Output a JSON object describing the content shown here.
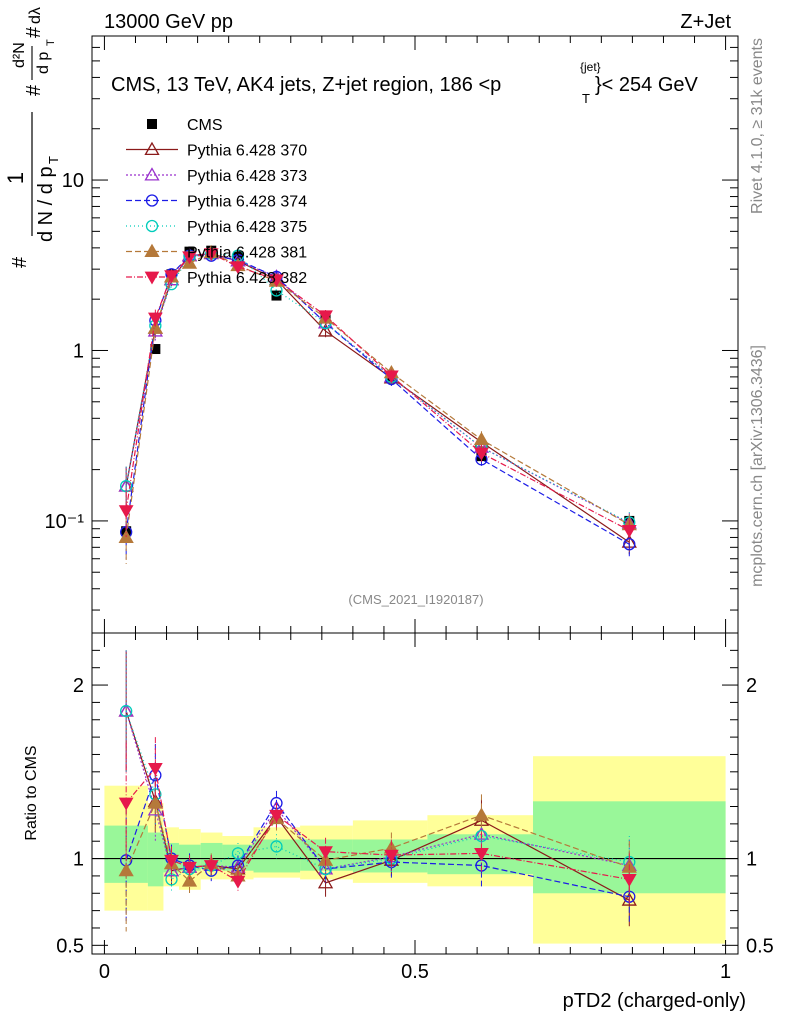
{
  "header": {
    "left": "13000 GeV pp",
    "right": "Z+Jet"
  },
  "side_texts": {
    "rivet": "Rivet 4.1.0, ≥ 31k events",
    "mcplots": "mcplots.cern.ch [arXiv:1306.3436]"
  },
  "colors": {
    "band_green": "#99f799",
    "band_yellow": "#ffff99",
    "axis": "#000000",
    "cms": "#000000"
  },
  "chart_data": [
    {
      "type": "line",
      "panel": "main",
      "title": "CMS, 13 TeV, AK4 jets, Z+jet region, 186 <p",
      "title_sup": "{jet}",
      "title_sub": "T",
      "title_tail": "}< 254 GeV",
      "watermark": "(CMS_2021_I1920187)",
      "xlabel": "pTD2 (charged-only)",
      "ylabel": {
        "prefix": "#",
        "one": "1",
        "dN": "d N / d p",
        "t": "T",
        "inner_hash": "#",
        "inner_hash2": "#",
        "d2N": "d²N",
        "dpt": "d p",
        "dl": "dλ"
      },
      "yscale": "log",
      "xlim": [
        -0.02,
        1.02
      ],
      "ylim": [
        0.022,
        70
      ],
      "y_ticks": [
        {
          "value": 0.1,
          "label": "10⁻¹"
        },
        {
          "value": 1,
          "label": "1"
        },
        {
          "value": 10,
          "label": "10"
        }
      ],
      "x": [
        0.035,
        0.082,
        0.108,
        0.137,
        0.172,
        0.215,
        0.277,
        0.356,
        0.462,
        0.607,
        0.845
      ],
      "series": [
        {
          "name": "CMS",
          "color": "#000000",
          "marker": "square",
          "dash": "none",
          "values": [
            0.087,
            1.02,
            2.8,
            3.8,
            3.85,
            3.55,
            2.1,
            1.55,
            0.7,
            0.24,
            0.1
          ]
        },
        {
          "name": "Pythia 6.428 370",
          "color": "#8b1a1a",
          "marker": "triangle-open",
          "dash": "none",
          "values": [
            0.16,
            1.35,
            2.6,
            3.6,
            3.7,
            3.35,
            2.6,
            1.3,
            0.69,
            0.29,
            0.075
          ]
        },
        {
          "name": "Pythia 6.428 373",
          "color": "#9a32cd",
          "marker": "triangle-open",
          "dash": "2,2",
          "values": [
            0.16,
            1.3,
            2.6,
            3.6,
            3.7,
            3.35,
            2.7,
            1.45,
            0.7,
            0.27,
            0.097
          ]
        },
        {
          "name": "Pythia 6.428 374",
          "color": "#1c1ce6",
          "marker": "circle-open",
          "dash": "6,3",
          "values": [
            0.086,
            1.5,
            2.8,
            3.6,
            3.6,
            3.4,
            2.7,
            1.45,
            0.68,
            0.23,
            0.073
          ]
        },
        {
          "name": "Pythia 6.428 375",
          "color": "#00ccbb",
          "marker": "circle-open",
          "dash": "1,3",
          "values": [
            0.16,
            1.4,
            2.45,
            3.55,
            3.7,
            3.6,
            2.25,
            1.45,
            0.7,
            0.27,
            0.098
          ]
        },
        {
          "name": "Pythia 6.428 381",
          "color": "#b5793a",
          "marker": "triangle-fill",
          "dash": "6,3",
          "values": [
            0.08,
            1.35,
            2.7,
            3.25,
            3.75,
            3.15,
            2.55,
            1.55,
            0.74,
            0.3,
            0.095
          ]
        },
        {
          "name": "Pythia 6.428 382",
          "color": "#e6194b",
          "marker": "triangledown-fill",
          "dash": "6,2,1,2",
          "values": [
            0.115,
            1.55,
            2.75,
            3.55,
            3.7,
            3.1,
            2.6,
            1.6,
            0.71,
            0.25,
            0.088
          ]
        }
      ]
    },
    {
      "type": "line",
      "panel": "ratio",
      "ylabel": "Ratio to CMS",
      "ylim": [
        0.45,
        2.3
      ],
      "y_ticks": [
        {
          "value": 0.5,
          "label": "0.5"
        },
        {
          "value": 1,
          "label": "1"
        },
        {
          "value": 2,
          "label": "2"
        }
      ],
      "x_ticks": [
        {
          "value": 0,
          "label": "0"
        },
        {
          "value": 0.5,
          "label": "0.5"
        },
        {
          "value": 1,
          "label": "1"
        }
      ],
      "bands": {
        "edges": [
          0.0,
          0.07,
          0.095,
          0.12,
          0.155,
          0.19,
          0.24,
          0.315,
          0.4,
          0.52,
          0.69,
          1.0
        ],
        "green": [
          [
            0.86,
            1.19
          ],
          [
            0.84,
            1.15
          ],
          [
            0.92,
            1.09
          ],
          [
            0.93,
            1.08
          ],
          [
            0.94,
            1.09
          ],
          [
            0.93,
            1.08
          ],
          [
            0.92,
            1.11
          ],
          [
            0.93,
            1.11
          ],
          [
            0.92,
            1.11
          ],
          [
            0.91,
            1.14
          ],
          [
            0.8,
            1.33
          ]
        ],
        "yellow": [
          [
            0.7,
            1.42
          ],
          [
            0.7,
            1.32
          ],
          [
            0.84,
            1.18
          ],
          [
            0.82,
            1.17
          ],
          [
            0.88,
            1.15
          ],
          [
            0.88,
            1.13
          ],
          [
            0.89,
            1.18
          ],
          [
            0.88,
            1.19
          ],
          [
            0.86,
            1.22
          ],
          [
            0.84,
            1.25
          ],
          [
            0.51,
            1.59
          ]
        ]
      },
      "series": [
        {
          "name": "Pythia 6.428 370",
          "values": [
            1.85,
            1.33,
            0.93,
            0.95,
            0.96,
            0.94,
            1.24,
            0.86,
            0.99,
            1.22,
            0.76
          ]
        },
        {
          "name": "Pythia 6.428 373",
          "values": [
            1.85,
            1.28,
            0.93,
            0.95,
            0.96,
            0.95,
            1.29,
            0.94,
            1.01,
            1.14,
            0.96
          ]
        },
        {
          "name": "Pythia 6.428 374",
          "values": [
            0.99,
            1.48,
            1.0,
            0.96,
            0.93,
            0.96,
            1.32,
            0.94,
            0.98,
            0.96,
            0.78
          ]
        },
        {
          "name": "Pythia 6.428 375",
          "values": [
            1.85,
            1.37,
            0.88,
            0.94,
            0.96,
            1.03,
            1.07,
            0.94,
            1.0,
            1.13,
            0.98
          ]
        },
        {
          "name": "Pythia 6.428 381",
          "values": [
            0.93,
            1.32,
            0.97,
            0.87,
            0.97,
            0.9,
            1.23,
            0.99,
            1.06,
            1.25,
            0.95
          ]
        },
        {
          "name": "Pythia 6.428 382",
          "values": [
            1.32,
            1.52,
            0.99,
            0.95,
            0.96,
            0.87,
            1.25,
            1.04,
            1.02,
            1.03,
            0.88
          ]
        }
      ]
    }
  ]
}
